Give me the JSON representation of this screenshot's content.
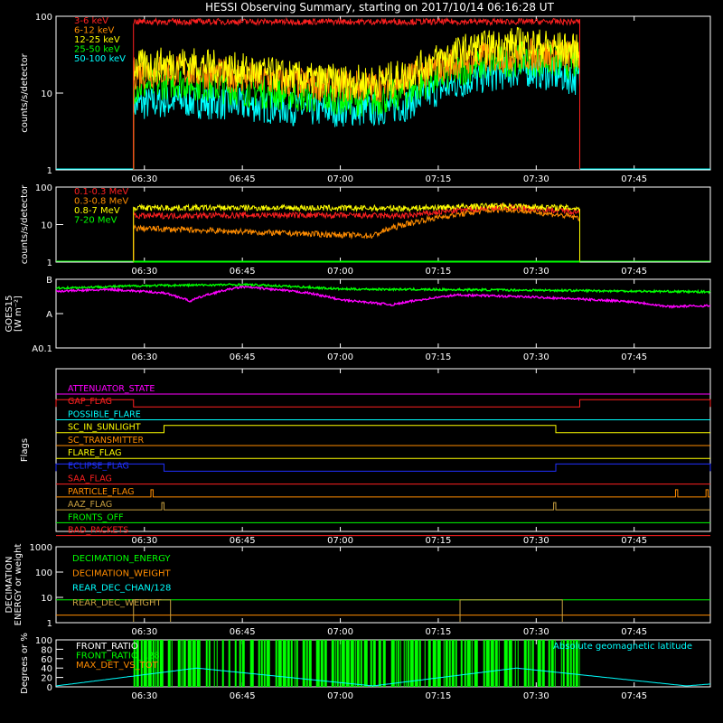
{
  "title": "HESSI Observing Summary, starting on 2017/10/14 06:16:28 UT",
  "time_axis": {
    "start": "06:16:28",
    "end": "07:56:40",
    "ticks": [
      "06:30",
      "06:45",
      "07:00",
      "07:15",
      "07:30",
      "07:45"
    ]
  },
  "colors": {
    "red": "#ff2020",
    "orange": "#ff8c00",
    "yellow": "#ffff00",
    "green": "#00ff00",
    "cyan": "#00ffff",
    "magenta": "#ff00ff",
    "blue": "#2030ff",
    "olive": "#c8a040",
    "white": "#ffffff"
  },
  "chart_data": [
    {
      "id": "hxr",
      "type": "line",
      "ylabel": "counts/s/detector",
      "yscale": "log",
      "ylim": [
        1,
        100
      ],
      "yticks": [
        "1",
        "10",
        "100"
      ],
      "data_start": "06:28:20",
      "data_end": "07:36:40",
      "series": [
        {
          "name": "3-6 keV",
          "color": "red",
          "x": [
            "06:28:20",
            "07:36:40"
          ],
          "y": [
            85,
            85
          ]
        },
        {
          "name": "6-12 keV",
          "color": "orange",
          "x": [
            "06:28:20",
            "06:35",
            "06:45",
            "06:55",
            "07:05",
            "07:10",
            "07:20",
            "07:28",
            "07:36:40"
          ],
          "y": [
            18,
            20,
            16,
            13,
            12,
            15,
            28,
            32,
            30
          ]
        },
        {
          "name": "12-25 keV",
          "color": "yellow",
          "x": [
            "06:28:20",
            "06:35",
            "06:45",
            "06:55",
            "07:05",
            "07:10",
            "07:20",
            "07:28",
            "07:36:40"
          ],
          "y": [
            22,
            25,
            20,
            15,
            14,
            17,
            38,
            45,
            35
          ]
        },
        {
          "name": "25-50 keV",
          "color": "green",
          "x": [
            "06:28:20",
            "06:35",
            "06:45",
            "06:55",
            "07:05",
            "07:10",
            "07:20",
            "07:28",
            "07:36:40"
          ],
          "y": [
            12,
            14,
            11,
            9,
            8,
            10,
            22,
            28,
            24
          ]
        },
        {
          "name": "50-100 keV",
          "color": "cyan",
          "x": [
            "06:28:20",
            "06:35",
            "06:45",
            "06:55",
            "07:05",
            "07:10",
            "07:20",
            "07:28",
            "07:36:40"
          ],
          "y": [
            7,
            8,
            7,
            6,
            6,
            7,
            15,
            20,
            15
          ]
        }
      ]
    },
    {
      "id": "gamma",
      "type": "line",
      "ylabel": "counts/s/detector",
      "yscale": "log",
      "ylim": [
        1,
        100
      ],
      "yticks": [
        "1",
        "10",
        "100"
      ],
      "data_start": "06:28:20",
      "data_end": "07:36:40",
      "series": [
        {
          "name": "0.1-0.3 MeV",
          "color": "red",
          "x": [
            "06:28:20",
            "06:50",
            "07:10",
            "07:25",
            "07:36:40"
          ],
          "y": [
            17,
            18,
            17,
            30,
            22
          ]
        },
        {
          "name": "0.3-0.8 MeV",
          "color": "orange",
          "x": [
            "06:28:20",
            "06:50",
            "07:05",
            "07:25",
            "07:36:40"
          ],
          "y": [
            8,
            6,
            5,
            26,
            15
          ]
        },
        {
          "name": "0.8-7 MeV",
          "color": "yellow",
          "x": [
            "06:28:20",
            "06:50",
            "07:10",
            "07:25",
            "07:36:40"
          ],
          "y": [
            28,
            28,
            27,
            32,
            27
          ]
        },
        {
          "name": "7-20 MeV",
          "color": "green",
          "x": [
            "06:28:20",
            "07:36:40"
          ],
          "y": [
            1,
            1
          ]
        }
      ]
    },
    {
      "id": "goes",
      "type": "line",
      "ylabel": "GOES15",
      "ylabel2": "[W m⁻²]",
      "yticks": [
        "A0.1",
        "A",
        "B"
      ],
      "ylim_log_class": [
        0.1,
        10
      ],
      "series": [
        {
          "color": "green",
          "x": [
            "06:16:28",
            "06:30",
            "06:45",
            "06:50",
            "07:00",
            "07:15",
            "07:30",
            "07:45",
            "07:56:40"
          ],
          "y": [
            5.5,
            6.5,
            7.0,
            6.5,
            5.2,
            5.0,
            4.8,
            4.5,
            4.3
          ]
        },
        {
          "color": "magenta",
          "x": [
            "06:16:28",
            "06:25",
            "06:33",
            "06:37",
            "06:45",
            "06:55",
            "07:00",
            "07:08",
            "07:18",
            "07:30",
            "07:45",
            "07:50",
            "07:56:40"
          ],
          "y": [
            4.5,
            5.0,
            4.0,
            2.3,
            6.0,
            4.0,
            2.5,
            1.8,
            3.5,
            3.0,
            2.2,
            1.6,
            1.7
          ]
        }
      ]
    },
    {
      "id": "flags",
      "type": "line",
      "ylabel": "Flags",
      "flags": [
        {
          "label": "ATTENUATOR_STATE",
          "color": "magenta",
          "high": []
        },
        {
          "label": "GAP_FLAG",
          "color": "red",
          "high": [
            [
              "06:16:28",
              "06:28:20"
            ],
            [
              "07:36:40",
              "07:56:40"
            ]
          ]
        },
        {
          "label": "POSSIBLE_FLARE",
          "color": "cyan",
          "high": []
        },
        {
          "label": "SC_IN_SUNLIGHT",
          "color": "yellow",
          "high": [
            [
              "06:33",
              "07:33"
            ]
          ]
        },
        {
          "label": "SC_TRANSMITTER",
          "color": "orange",
          "high": []
        },
        {
          "label": "FLARE_FLAG",
          "color": "yellow",
          "high": []
        },
        {
          "label": "ECLIPSE_FLAG",
          "color": "blue",
          "high": [
            [
              "06:16:28",
              "06:33"
            ],
            [
              "07:33",
              "07:56:40"
            ]
          ]
        },
        {
          "label": "SAA_FLAG",
          "color": "red",
          "high": []
        },
        {
          "label": "PARTICLE_FLAG",
          "color": "orange",
          "high": [
            [
              "06:31:00",
              "06:31:20"
            ],
            [
              "07:51:20",
              "07:51:40"
            ],
            [
              "07:56:00",
              "07:56:20"
            ]
          ]
        },
        {
          "label": "AAZ_FLAG",
          "color": "olive",
          "high": [
            [
              "06:32:40",
              "06:33:00"
            ],
            [
              "07:32:40",
              "07:33:00"
            ]
          ]
        },
        {
          "label": "FRONTS_OFF",
          "color": "green",
          "high": []
        },
        {
          "label": "BAD_PACKETS",
          "color": "red",
          "high": []
        }
      ]
    },
    {
      "id": "decimation",
      "type": "line",
      "ylabel": "DECIMATION",
      "ylabel2": "ENERGY or weight",
      "yscale": "log",
      "ylim": [
        1,
        1000
      ],
      "yticks": [
        "1",
        "10",
        "100",
        "1000"
      ],
      "series": [
        {
          "name": "DECIMATION_ENERGY",
          "color": "green",
          "x": [
            "06:16:28",
            "07:56:40"
          ],
          "y": [
            8,
            8
          ]
        },
        {
          "name": "DECIMATION_WEIGHT",
          "color": "orange",
          "x": [
            "06:16:28",
            "07:56:40"
          ],
          "y": [
            2,
            2
          ]
        },
        {
          "name": "REAR_DEC_CHAN/128",
          "color": "cyan",
          "x": [],
          "y": []
        },
        {
          "name": "REAR_DEC_WEIGHT",
          "color": "olive",
          "windows": [
            [
              "06:28:20",
              "06:34:00"
            ],
            [
              "07:18:20",
              "07:34:00"
            ]
          ],
          "high": 8,
          "low": 1
        }
      ]
    },
    {
      "id": "ratio",
      "type": "line",
      "ylabel": "Degrees or %",
      "ylim": [
        0,
        100
      ],
      "yticks": [
        "0",
        "20",
        "40",
        "60",
        "80",
        "100"
      ],
      "series": [
        {
          "name": "FRONT_RATIO",
          "color": "white",
          "x": [],
          "y": []
        },
        {
          "name": "FRONT_RATIO_128",
          "color": "green",
          "x": [
            "06:28:20",
            "07:36:40"
          ],
          "y": [
            100,
            100
          ]
        },
        {
          "name": "MAX_DET_VS_TOT",
          "color": "orange",
          "x": [],
          "y": []
        },
        {
          "name": "Absolute geomagnetic latitude",
          "color": "cyan",
          "x": [
            "06:16:28",
            "06:38",
            "07:05",
            "07:27",
            "07:53",
            "07:56:40"
          ],
          "y": [
            2,
            40,
            2,
            40,
            2,
            6
          ]
        }
      ]
    }
  ]
}
